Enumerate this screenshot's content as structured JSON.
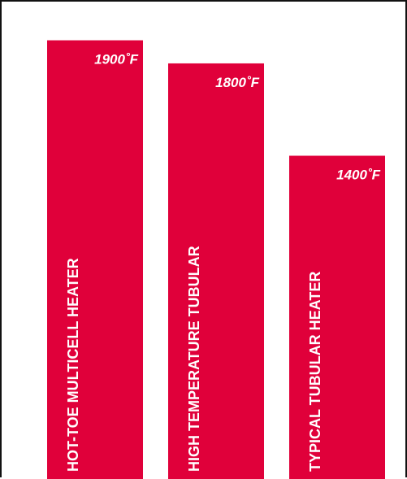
{
  "chart_data": {
    "type": "bar",
    "orientation": "vertical",
    "categories": [
      "HOT-TOE MULTICELL HEATER",
      "HIGH TEMPERATURE TUBULAR",
      "TYPICAL TUBULAR HEATER"
    ],
    "values": [
      1900,
      1800,
      1400
    ],
    "value_labels": [
      "1900˚F",
      "1800˚F",
      "1400˚F"
    ],
    "title": "",
    "xlabel": "",
    "ylabel": "",
    "ylim": [
      0,
      1990
    ],
    "grid": false,
    "legend": "none",
    "bar_color": "#e0003a",
    "label_color": "#ffffff"
  }
}
